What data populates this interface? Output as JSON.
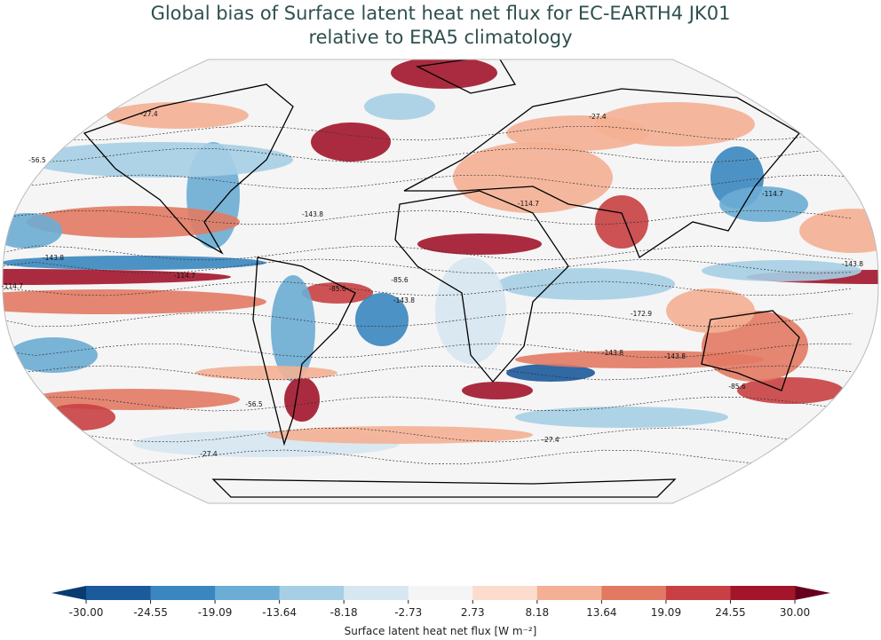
{
  "title": {
    "line1": "Global bias of Surface latent heat net flux for EC-EARTH4 JK01",
    "line2": "relative to ERA5 climatology"
  },
  "map": {
    "projection": "Robinson",
    "contour_labels": [
      "-27.4",
      "-56.5",
      "-85.6",
      "-114.7",
      "-143.8",
      "-172.9"
    ]
  },
  "colorbar": {
    "label": "Surface latent heat net flux [W m⁻²]",
    "ticks": [
      "-30.00",
      "-24.55",
      "-19.09",
      "-13.64",
      "-8.18",
      "-2.73",
      "2.73",
      "8.18",
      "13.64",
      "19.09",
      "24.55",
      "30.00"
    ],
    "colors": [
      "#1b5a9b",
      "#3a87c0",
      "#6badd4",
      "#a6cfe5",
      "#d6e7f1",
      "#f5f5f5",
      "#fcdccd",
      "#f4b094",
      "#e27a63",
      "#c84043",
      "#a2152b"
    ],
    "under_color": "#0a3b70",
    "over_color": "#67001f",
    "extend": "both"
  }
}
